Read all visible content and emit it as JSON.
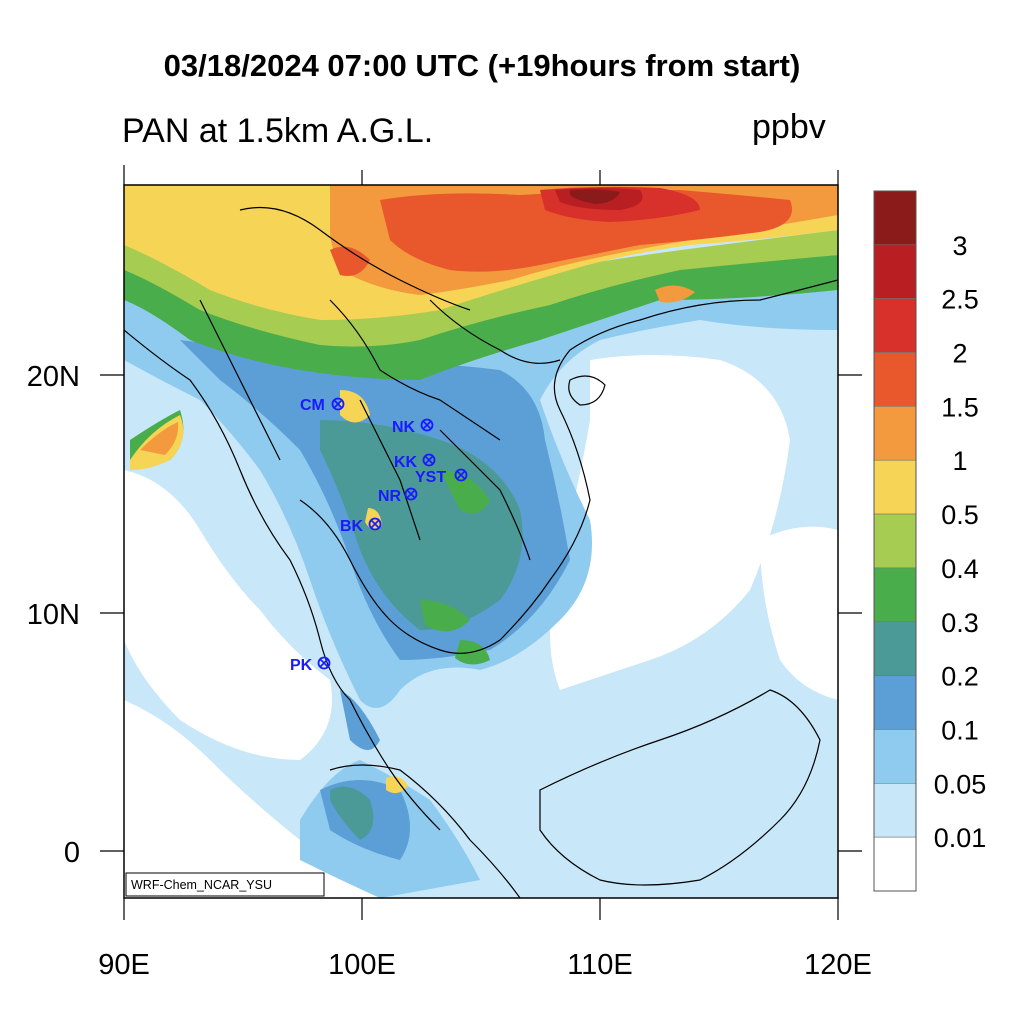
{
  "title": "03/18/2024 07:00 UTC (+19hours from start)",
  "subtitle": "PAN at 1.5km A.G.L.",
  "units": "ppbv",
  "credit": "WRF-Chem_NCAR_YSU",
  "axes": {
    "x_labels": [
      "90E",
      "100E",
      "110E",
      "120E"
    ],
    "y_labels": [
      "20N",
      "10N",
      "0"
    ]
  },
  "colorbar": {
    "labels": [
      "3",
      "2.5",
      "2",
      "1.5",
      "1",
      "0.5",
      "0.4",
      "0.3",
      "0.2",
      "0.1",
      "0.05",
      "0.01"
    ],
    "colors": [
      "#8b1a1a",
      "#b81e22",
      "#d8302a",
      "#e8582c",
      "#f39a3e",
      "#f6d455",
      "#a6cc52",
      "#4aad4c",
      "#4b9a98",
      "#5b9fd6",
      "#8ecbef",
      "#c8e7f8",
      "#ffffff"
    ]
  },
  "stations": [
    {
      "code": "CM"
    },
    {
      "code": "NK"
    },
    {
      "code": "KK"
    },
    {
      "code": "YST"
    },
    {
      "code": "NR"
    },
    {
      "code": "BK"
    },
    {
      "code": "PK"
    }
  ]
}
